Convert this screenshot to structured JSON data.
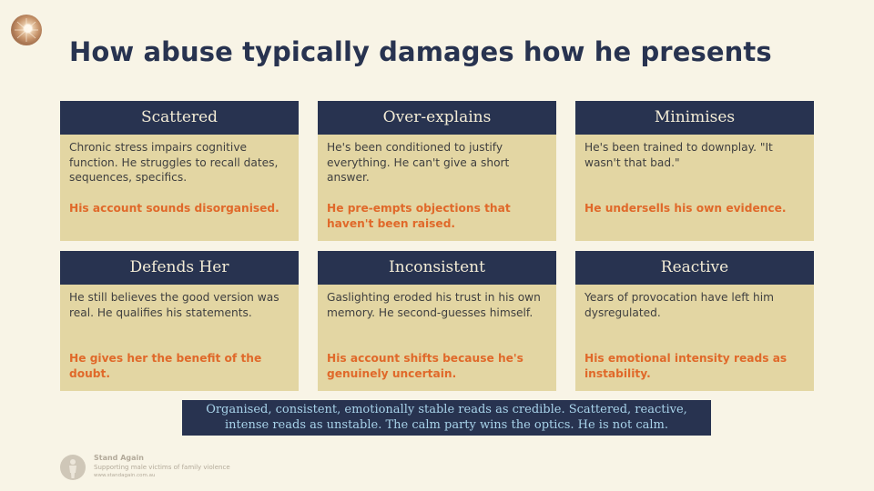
{
  "title": "How abuse typically damages how he presents",
  "cards": [
    {
      "heading": "Scattered",
      "description": "Chronic stress impairs cognitive function. He struggles to recall dates, sequences, specifics.",
      "impact": "His account sounds disorganised."
    },
    {
      "heading": "Over-explains",
      "description": "He's been conditioned to justify everything. He can't give a short answer.",
      "impact": "He pre-empts objections that haven't been raised."
    },
    {
      "heading": "Minimises",
      "description": "He's been trained to downplay. \"It wasn't that bad.\"",
      "impact": "He undersells his own evidence."
    },
    {
      "heading": "Defends Her",
      "description": "He still believes the good version was real. He qualifies his statements.",
      "impact": "He gives her the benefit of the doubt."
    },
    {
      "heading": "Inconsistent",
      "description": "Gaslighting eroded his trust in his own memory. He second-guesses himself.",
      "impact": "His account shifts because he's genuinely uncertain."
    },
    {
      "heading": "Reactive",
      "description": "Years of provocation have left him dysregulated.",
      "impact": "His emotional intensity reads as instability."
    }
  ],
  "banner": {
    "line1": "Organised, consistent, emotionally stable reads as credible. Scattered, reactive,",
    "line2": "intense reads as unstable. The calm party wins the optics. He is not calm."
  },
  "footer": {
    "name": "Stand Again",
    "tagline": "Supporting male victims of family violence",
    "url": "www.standagain.com.au"
  },
  "colors": {
    "navy": "#283350",
    "card_fill": "#e3d6a3",
    "accent_orange": "#e0692a",
    "banner_text": "#a8d3ea",
    "background": "#f8f4e6"
  }
}
